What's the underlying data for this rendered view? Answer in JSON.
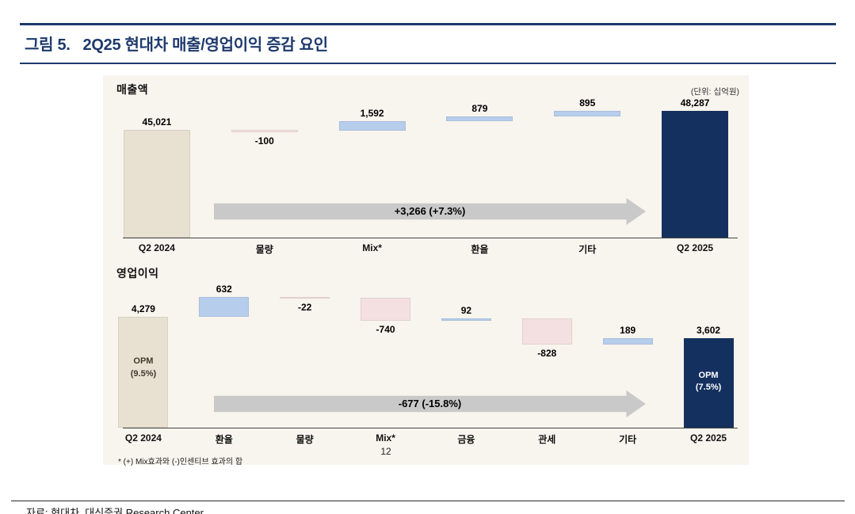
{
  "header": {
    "figure_label": "그림 5.",
    "title": "2Q25 현대차 매출/영업이익 증감 요인"
  },
  "unit_label": "(단위: 십억원)",
  "footnote": "* (+) Mix효과와 (-)인센티브 효과의 합",
  "page_number": "12",
  "source": "자료: 현대차, 대신증권 Research Center",
  "colors": {
    "accent_navy": "#1e3a6d",
    "panel_bg": "#f8f4ee",
    "bar_total_start": "#e8e1d2",
    "bar_total_end": "#14305e",
    "bar_positive": "#b7cdec",
    "bar_negative": "#f4e0e1",
    "arrow_gray": "#c9c9c9",
    "annotation_on_light": "#40392e",
    "annotation_on_dark": "#ffffff"
  },
  "chart_data": [
    {
      "type": "bar",
      "subtype": "waterfall",
      "title": "매출액",
      "categories": [
        "Q2 2024",
        "물량",
        "Mix*",
        "환율",
        "기타",
        "Q2 2025"
      ],
      "values": [
        45021,
        -100,
        1592,
        879,
        895,
        48287
      ],
      "labels": [
        "45,021",
        "-100",
        "1,592",
        "879",
        "895",
        "48,287"
      ],
      "roles": [
        "total",
        "delta",
        "delta",
        "delta",
        "delta",
        "total"
      ],
      "bar_annotations": [
        null,
        null,
        null,
        null,
        null,
        null
      ],
      "arrow_label": "+3,266 (+7.3%)",
      "ylim": [
        27000,
        51200
      ],
      "grid": false,
      "legend": false
    },
    {
      "type": "bar",
      "subtype": "waterfall",
      "title": "영업이익",
      "categories": [
        "Q2 2024",
        "환율",
        "물량",
        "Mix*",
        "금융",
        "관세",
        "기타",
        "Q2 2025"
      ],
      "values": [
        4279,
        632,
        -22,
        -740,
        92,
        -828,
        189,
        3602
      ],
      "labels": [
        "4,279",
        "632",
        "-22",
        "-740",
        "92",
        "-828",
        "189",
        "3,602"
      ],
      "roles": [
        "total",
        "delta",
        "delta",
        "delta",
        "delta",
        "delta",
        "delta",
        "total"
      ],
      "bar_annotations": [
        "OPM\n(9.5%)",
        null,
        null,
        null,
        null,
        null,
        null,
        "OPM\n(7.5%)"
      ],
      "arrow_label": "-677 (-15.8%)",
      "ylim": [
        780,
        5160
      ],
      "grid": false,
      "legend": false
    }
  ]
}
